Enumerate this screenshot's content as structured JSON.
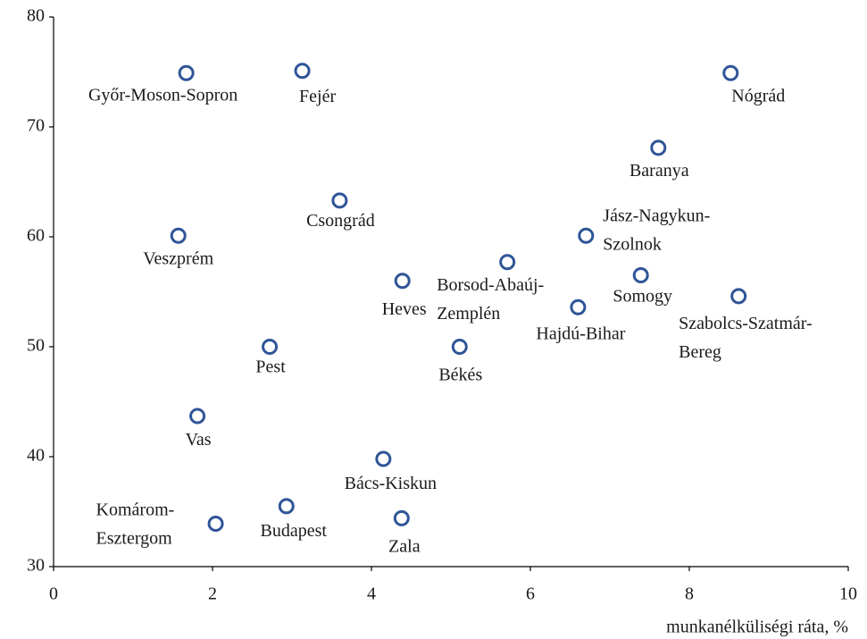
{
  "chart_data": {
    "type": "scatter",
    "x_label": "munkanélküliségi ráta, %",
    "labels": [
      [
        "Győr-Moson-Sopron"
      ],
      [
        "Fejér"
      ],
      [
        "Nógrád"
      ],
      [
        "Baranya"
      ],
      [
        "Csongrád"
      ],
      [
        "Veszprém"
      ],
      [
        "Jász-Nagykun-",
        "Szolnok"
      ],
      [
        "Borsod-Abaúj-",
        "Zemplén"
      ],
      [
        "Somogy"
      ],
      [
        "Heves"
      ],
      [
        "Szabolcs-Szatmár-",
        "Bereg"
      ],
      [
        "Hajdú-Bihar"
      ],
      [
        "Pest"
      ],
      [
        "Békés"
      ],
      [
        "Vas"
      ],
      [
        "Bács-Kiskun"
      ],
      [
        "Budapest"
      ],
      [
        "Komárom-",
        "Esztergom"
      ],
      [
        "Zala"
      ]
    ],
    "x": [
      1.67,
      3.13,
      8.52,
      7.61,
      3.6,
      1.57,
      6.7,
      5.71,
      7.39,
      4.39,
      8.62,
      6.6,
      2.72,
      5.11,
      1.81,
      4.15,
      2.93,
      2.04,
      4.38
    ],
    "y": [
      74.9,
      75.1,
      74.9,
      68.1,
      63.3,
      60.1,
      60.1,
      57.7,
      56.5,
      56.0,
      54.6,
      53.6,
      50.0,
      50.0,
      43.7,
      39.8,
      35.5,
      33.9,
      34.4
    ],
    "color": "#2f5597",
    "xlim": [
      0,
      10
    ],
    "xticks": [
      0,
      2,
      4,
      6,
      8,
      10
    ],
    "ylim": [
      30,
      80
    ],
    "yticks": [
      30,
      40,
      50,
      60,
      70,
      80
    ]
  }
}
